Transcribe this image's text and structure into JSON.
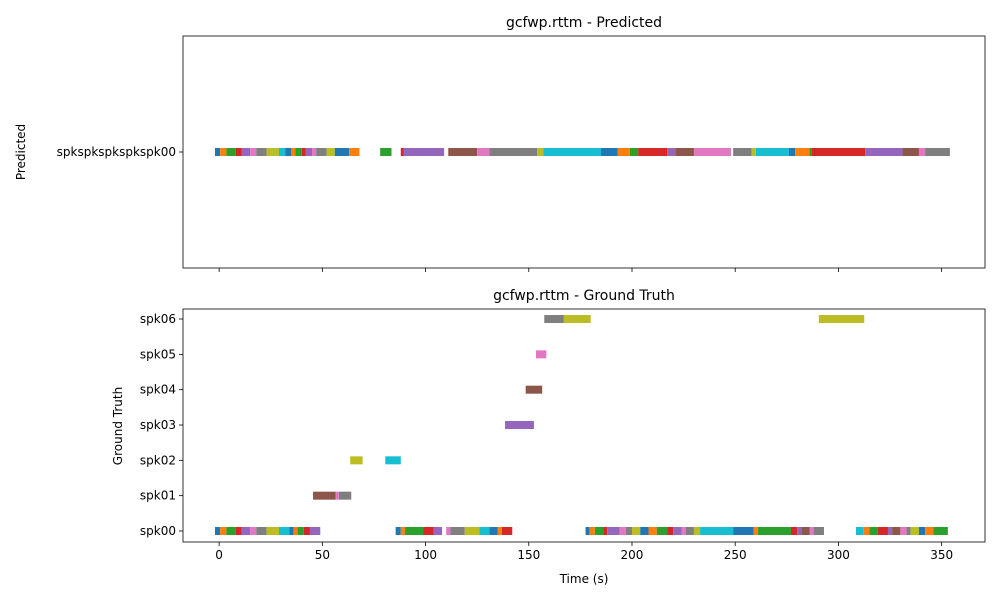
{
  "chart_data": [
    {
      "type": "timeline",
      "title": "gcfwp.rttm - Predicted",
      "ylabel": "Predicted",
      "xlabel": "",
      "xlim": [
        -17.5,
        371
      ],
      "show_x_tick_labels": false,
      "grid": false,
      "rows": [
        "spkspkspkspkspk00"
      ],
      "segments": [
        {
          "row": 0,
          "start": -2.0,
          "end": 0.5,
          "color": "#1f77b4"
        },
        {
          "row": 0,
          "start": 0.5,
          "end": 3.5,
          "color": "#ff7f0e"
        },
        {
          "row": 0,
          "start": 3.5,
          "end": 8.0,
          "color": "#2ca02c"
        },
        {
          "row": 0,
          "start": 8.0,
          "end": 11.0,
          "color": "#d62728"
        },
        {
          "row": 0,
          "start": 11.0,
          "end": 15.0,
          "color": "#9467bd"
        },
        {
          "row": 0,
          "start": 15.0,
          "end": 18.0,
          "color": "#e377c2"
        },
        {
          "row": 0,
          "start": 18.0,
          "end": 23.0,
          "color": "#7f7f7f"
        },
        {
          "row": 0,
          "start": 23.0,
          "end": 29.0,
          "color": "#bcbd22"
        },
        {
          "row": 0,
          "start": 29.0,
          "end": 32.0,
          "color": "#17becf"
        },
        {
          "row": 0,
          "start": 32.0,
          "end": 35.0,
          "color": "#1f77b4"
        },
        {
          "row": 0,
          "start": 35.0,
          "end": 37.0,
          "color": "#ff7f0e"
        },
        {
          "row": 0,
          "start": 37.0,
          "end": 40.0,
          "color": "#2ca02c"
        },
        {
          "row": 0,
          "start": 40.0,
          "end": 42.0,
          "color": "#d62728"
        },
        {
          "row": 0,
          "start": 42.0,
          "end": 45.0,
          "color": "#9467bd"
        },
        {
          "row": 0,
          "start": 45.0,
          "end": 47.0,
          "color": "#e377c2"
        },
        {
          "row": 0,
          "start": 47.0,
          "end": 52.0,
          "color": "#7f7f7f"
        },
        {
          "row": 0,
          "start": 52.0,
          "end": 56.0,
          "color": "#bcbd22"
        },
        {
          "row": 0,
          "start": 56.0,
          "end": 63.0,
          "color": "#1f77b4"
        },
        {
          "row": 0,
          "start": 63.0,
          "end": 68.0,
          "color": "#ff7f0e"
        },
        {
          "row": 0,
          "start": 78.0,
          "end": 83.5,
          "color": "#2ca02c"
        },
        {
          "row": 0,
          "start": 88.0,
          "end": 89.5,
          "color": "#d62728"
        },
        {
          "row": 0,
          "start": 89.5,
          "end": 109.0,
          "color": "#9467bd"
        },
        {
          "row": 0,
          "start": 111.0,
          "end": 125.0,
          "color": "#8c564b"
        },
        {
          "row": 0,
          "start": 125.0,
          "end": 131.0,
          "color": "#e377c2"
        },
        {
          "row": 0,
          "start": 131.0,
          "end": 154.0,
          "color": "#7f7f7f"
        },
        {
          "row": 0,
          "start": 154.0,
          "end": 157.0,
          "color": "#bcbd22"
        },
        {
          "row": 0,
          "start": 157.0,
          "end": 185.0,
          "color": "#17becf"
        },
        {
          "row": 0,
          "start": 185.0,
          "end": 193.0,
          "color": "#1f77b4"
        },
        {
          "row": 0,
          "start": 193.0,
          "end": 199.0,
          "color": "#ff7f0e"
        },
        {
          "row": 0,
          "start": 199.0,
          "end": 203.0,
          "color": "#2ca02c"
        },
        {
          "row": 0,
          "start": 203.0,
          "end": 217.0,
          "color": "#d62728"
        },
        {
          "row": 0,
          "start": 217.0,
          "end": 221.0,
          "color": "#9467bd"
        },
        {
          "row": 0,
          "start": 221.0,
          "end": 230.0,
          "color": "#8c564b"
        },
        {
          "row": 0,
          "start": 230.0,
          "end": 248.0,
          "color": "#e377c2"
        },
        {
          "row": 0,
          "start": 249.0,
          "end": 258.0,
          "color": "#7f7f7f"
        },
        {
          "row": 0,
          "start": 258.0,
          "end": 260.0,
          "color": "#bcbd22"
        },
        {
          "row": 0,
          "start": 260.0,
          "end": 276.0,
          "color": "#17becf"
        },
        {
          "row": 0,
          "start": 276.0,
          "end": 279.0,
          "color": "#1f77b4"
        },
        {
          "row": 0,
          "start": 279.0,
          "end": 286.0,
          "color": "#ff7f0e"
        },
        {
          "row": 0,
          "start": 286.0,
          "end": 287.0,
          "color": "#2ca02c"
        },
        {
          "row": 0,
          "start": 287.0,
          "end": 313.0,
          "color": "#d62728"
        },
        {
          "row": 0,
          "start": 313.0,
          "end": 331.0,
          "color": "#9467bd"
        },
        {
          "row": 0,
          "start": 331.0,
          "end": 339.0,
          "color": "#8c564b"
        },
        {
          "row": 0,
          "start": 339.0,
          "end": 342.0,
          "color": "#e377c2"
        },
        {
          "row": 0,
          "start": 342.0,
          "end": 354.0,
          "color": "#7f7f7f"
        }
      ]
    },
    {
      "type": "timeline",
      "title": "gcfwp.rttm - Ground Truth",
      "ylabel": "Ground Truth",
      "xlabel": "Time (s)",
      "xlim": [
        -17.5,
        371
      ],
      "xticks": [
        0,
        50,
        100,
        150,
        200,
        250,
        300,
        350
      ],
      "grid": false,
      "rows": [
        "spk00",
        "spk01",
        "spk02",
        "spk03",
        "spk04",
        "spk05",
        "spk06"
      ],
      "segments": [
        {
          "row": 0,
          "start": -2.0,
          "end": 0.5,
          "color": "#1f77b4"
        },
        {
          "row": 0,
          "start": 0.5,
          "end": 3.5,
          "color": "#ff7f0e"
        },
        {
          "row": 0,
          "start": 3.5,
          "end": 8.0,
          "color": "#2ca02c"
        },
        {
          "row": 0,
          "start": 8.0,
          "end": 11.0,
          "color": "#d62728"
        },
        {
          "row": 0,
          "start": 11.0,
          "end": 15.0,
          "color": "#9467bd"
        },
        {
          "row": 0,
          "start": 15.0,
          "end": 18.0,
          "color": "#e377c2"
        },
        {
          "row": 0,
          "start": 18.0,
          "end": 23.0,
          "color": "#7f7f7f"
        },
        {
          "row": 0,
          "start": 23.0,
          "end": 29.0,
          "color": "#bcbd22"
        },
        {
          "row": 0,
          "start": 29.0,
          "end": 34.0,
          "color": "#17becf"
        },
        {
          "row": 0,
          "start": 34.0,
          "end": 36.0,
          "color": "#1f77b4"
        },
        {
          "row": 0,
          "start": 36.0,
          "end": 38.0,
          "color": "#ff7f0e"
        },
        {
          "row": 0,
          "start": 38.0,
          "end": 41.0,
          "color": "#2ca02c"
        },
        {
          "row": 0,
          "start": 41.0,
          "end": 44.0,
          "color": "#d62728"
        },
        {
          "row": 0,
          "start": 44.0,
          "end": 49.0,
          "color": "#9467bd"
        },
        {
          "row": 0,
          "start": 85.5,
          "end": 88.0,
          "color": "#1f77b4"
        },
        {
          "row": 0,
          "start": 88.0,
          "end": 90.0,
          "color": "#ff7f0e"
        },
        {
          "row": 0,
          "start": 90.0,
          "end": 99.0,
          "color": "#2ca02c"
        },
        {
          "row": 0,
          "start": 99.0,
          "end": 104.0,
          "color": "#d62728"
        },
        {
          "row": 0,
          "start": 104.0,
          "end": 108.0,
          "color": "#9467bd"
        },
        {
          "row": 0,
          "start": 110.0,
          "end": 112.0,
          "color": "#e377c2"
        },
        {
          "row": 0,
          "start": 112.0,
          "end": 119.0,
          "color": "#7f7f7f"
        },
        {
          "row": 0,
          "start": 119.0,
          "end": 126.0,
          "color": "#bcbd22"
        },
        {
          "row": 0,
          "start": 126.0,
          "end": 131.0,
          "color": "#17becf"
        },
        {
          "row": 0,
          "start": 131.0,
          "end": 135.0,
          "color": "#1f77b4"
        },
        {
          "row": 0,
          "start": 135.0,
          "end": 137.0,
          "color": "#ff7f0e"
        },
        {
          "row": 0,
          "start": 137.0,
          "end": 142.0,
          "color": "#d62728"
        },
        {
          "row": 0,
          "start": 177.5,
          "end": 179.5,
          "color": "#1f77b4"
        },
        {
          "row": 0,
          "start": 179.5,
          "end": 182.0,
          "color": "#ff7f0e"
        },
        {
          "row": 0,
          "start": 182.0,
          "end": 186.0,
          "color": "#2ca02c"
        },
        {
          "row": 0,
          "start": 186.0,
          "end": 188.0,
          "color": "#d62728"
        },
        {
          "row": 0,
          "start": 188.0,
          "end": 194.0,
          "color": "#9467bd"
        },
        {
          "row": 0,
          "start": 194.0,
          "end": 197.0,
          "color": "#e377c2"
        },
        {
          "row": 0,
          "start": 197.0,
          "end": 200.0,
          "color": "#7f7f7f"
        },
        {
          "row": 0,
          "start": 200.0,
          "end": 204.0,
          "color": "#bcbd22"
        },
        {
          "row": 0,
          "start": 204.0,
          "end": 208.0,
          "color": "#1f77b4"
        },
        {
          "row": 0,
          "start": 208.0,
          "end": 212.0,
          "color": "#ff7f0e"
        },
        {
          "row": 0,
          "start": 212.0,
          "end": 217.0,
          "color": "#2ca02c"
        },
        {
          "row": 0,
          "start": 217.0,
          "end": 220.0,
          "color": "#d62728"
        },
        {
          "row": 0,
          "start": 220.0,
          "end": 224.0,
          "color": "#9467bd"
        },
        {
          "row": 0,
          "start": 224.0,
          "end": 226.0,
          "color": "#e377c2"
        },
        {
          "row": 0,
          "start": 226.0,
          "end": 230.0,
          "color": "#7f7f7f"
        },
        {
          "row": 0,
          "start": 230.0,
          "end": 233.0,
          "color": "#bcbd22"
        },
        {
          "row": 0,
          "start": 233.0,
          "end": 249.0,
          "color": "#17becf"
        },
        {
          "row": 0,
          "start": 249.0,
          "end": 259.0,
          "color": "#1f77b4"
        },
        {
          "row": 0,
          "start": 259.0,
          "end": 261.0,
          "color": "#ff7f0e"
        },
        {
          "row": 0,
          "start": 261.0,
          "end": 277.0,
          "color": "#2ca02c"
        },
        {
          "row": 0,
          "start": 277.0,
          "end": 280.0,
          "color": "#d62728"
        },
        {
          "row": 0,
          "start": 280.0,
          "end": 282.0,
          "color": "#9467bd"
        },
        {
          "row": 0,
          "start": 282.0,
          "end": 286.0,
          "color": "#8c564b"
        },
        {
          "row": 0,
          "start": 286.0,
          "end": 288.0,
          "color": "#e377c2"
        },
        {
          "row": 0,
          "start": 288.0,
          "end": 293.0,
          "color": "#7f7f7f"
        },
        {
          "row": 0,
          "start": 308.5,
          "end": 312.0,
          "color": "#17becf"
        },
        {
          "row": 0,
          "start": 312.0,
          "end": 315.0,
          "color": "#ff7f0e"
        },
        {
          "row": 0,
          "start": 315.0,
          "end": 319.0,
          "color": "#2ca02c"
        },
        {
          "row": 0,
          "start": 319.0,
          "end": 324.0,
          "color": "#d62728"
        },
        {
          "row": 0,
          "start": 324.0,
          "end": 326.0,
          "color": "#9467bd"
        },
        {
          "row": 0,
          "start": 326.0,
          "end": 330.0,
          "color": "#8c564b"
        },
        {
          "row": 0,
          "start": 330.0,
          "end": 333.0,
          "color": "#e377c2"
        },
        {
          "row": 0,
          "start": 333.0,
          "end": 335.0,
          "color": "#7f7f7f"
        },
        {
          "row": 0,
          "start": 335.0,
          "end": 339.0,
          "color": "#bcbd22"
        },
        {
          "row": 0,
          "start": 339.0,
          "end": 342.0,
          "color": "#1f77b4"
        },
        {
          "row": 0,
          "start": 342.0,
          "end": 346.0,
          "color": "#ff7f0e"
        },
        {
          "row": 0,
          "start": 346.0,
          "end": 353.0,
          "color": "#2ca02c"
        },
        {
          "row": 1,
          "start": 45.5,
          "end": 56.5,
          "color": "#8c564b"
        },
        {
          "row": 1,
          "start": 56.5,
          "end": 58.0,
          "color": "#e377c2"
        },
        {
          "row": 1,
          "start": 58.0,
          "end": 64.0,
          "color": "#7f7f7f"
        },
        {
          "row": 2,
          "start": 63.5,
          "end": 69.5,
          "color": "#bcbd22"
        },
        {
          "row": 2,
          "start": 80.5,
          "end": 88.0,
          "color": "#17becf"
        },
        {
          "row": 3,
          "start": 138.5,
          "end": 152.5,
          "color": "#9467bd"
        },
        {
          "row": 4,
          "start": 148.5,
          "end": 156.5,
          "color": "#8c564b"
        },
        {
          "row": 5,
          "start": 153.5,
          "end": 158.5,
          "color": "#e377c2"
        },
        {
          "row": 6,
          "start": 157.5,
          "end": 167.0,
          "color": "#7f7f7f"
        },
        {
          "row": 6,
          "start": 167.0,
          "end": 180.0,
          "color": "#bcbd22"
        },
        {
          "row": 6,
          "start": 290.5,
          "end": 312.5,
          "color": "#bcbd22"
        }
      ]
    }
  ]
}
